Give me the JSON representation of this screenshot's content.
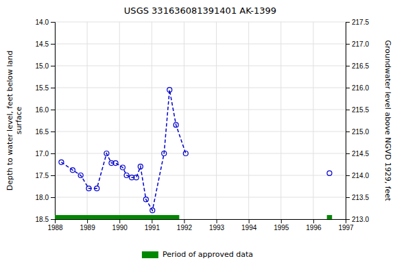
{
  "chart_data": {
    "type": "line",
    "title": "USGS 331636081391401 AK-1399",
    "y_label": "Depth to water level, feet below land\nsurface",
    "y2_label": "Groundwater level above NGVD 1929, feet",
    "xlim": [
      1988.0,
      1997.0
    ],
    "xticks": [
      1988,
      1989,
      1990,
      1991,
      1992,
      1993,
      1994,
      1995,
      1996,
      1997
    ],
    "ylim": [
      18.5,
      14.0
    ],
    "yticks": [
      {
        "value": 14.0,
        "label": "14.0"
      },
      14.5,
      {
        "value": 15.0,
        "label": "15.0"
      },
      15.5,
      {
        "value": 16.0,
        "label": "16.0"
      },
      16.5,
      {
        "value": 17.0,
        "label": "17.0"
      },
      17.5,
      {
        "value": 18.0,
        "label": "18.0"
      },
      18.5
    ],
    "y2lim": [
      213.0,
      217.5
    ],
    "y2ticks": [
      {
        "value": 213.0,
        "label": "213.0"
      },
      213.5,
      {
        "value": 214.0,
        "label": "214.0"
      },
      214.5,
      {
        "value": 215.0,
        "label": "215.0"
      },
      215.5,
      {
        "value": 216.0,
        "label": "216.0"
      },
      216.5,
      {
        "value": 217.0,
        "label": "217.0"
      },
      217.5
    ],
    "grid": true,
    "legend": "bottom",
    "series": [
      {
        "color": "#0000cc",
        "marker": "circle",
        "line_style": "dashed",
        "x": [
          1988.2,
          1988.55,
          1988.8,
          1989.05,
          1989.3,
          1989.6,
          1989.75,
          1989.88,
          1990.1,
          1990.22,
          1990.38,
          1990.52,
          1990.65,
          1990.82,
          1991.02,
          1991.38,
          1991.55,
          1991.75,
          1992.05
        ],
        "values": [
          17.2,
          17.38,
          17.5,
          17.8,
          17.8,
          17.0,
          17.22,
          17.22,
          17.32,
          17.5,
          17.55,
          17.55,
          17.3,
          18.05,
          18.3,
          17.0,
          15.55,
          16.35,
          17.0
        ]
      },
      {
        "color": "#0000cc",
        "marker": "circle",
        "line_style": "dashed",
        "x": [
          1996.5
        ],
        "values": [
          17.45
        ]
      }
    ],
    "periods": {
      "name": "Period of approved data",
      "color": "#008800",
      "ranges": [
        [
          1988.0,
          1991.85
        ],
        [
          1996.42,
          1996.58
        ]
      ]
    }
  }
}
